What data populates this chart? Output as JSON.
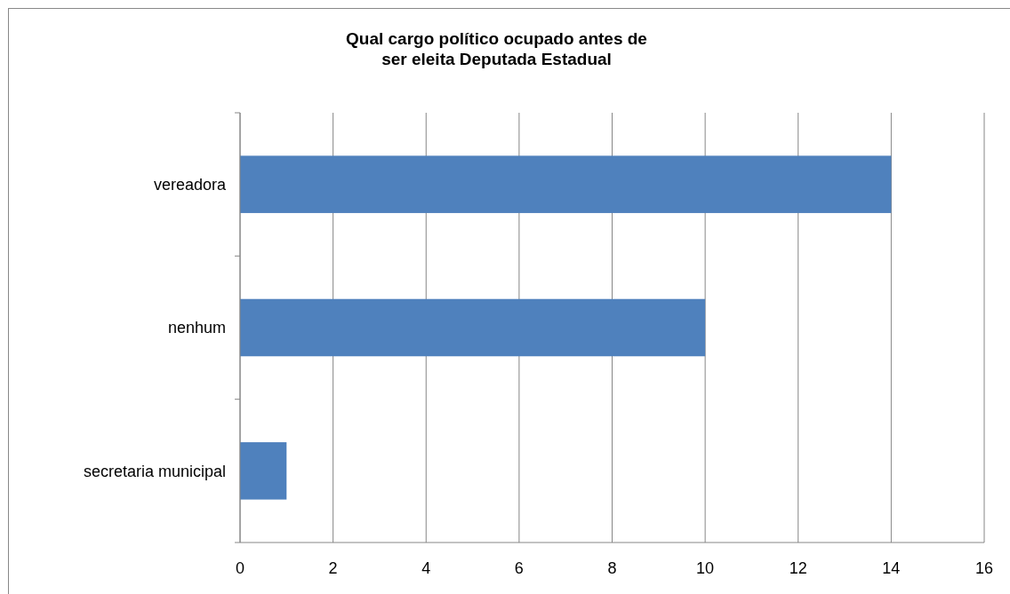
{
  "chart_data": {
    "type": "bar",
    "orientation": "horizontal",
    "title": "Qual cargo político ocupado antes de\nser eleita Deputada Estadual",
    "categories": [
      "vereadora",
      "nenhum",
      "secretaria municipal"
    ],
    "values": [
      14,
      10,
      1
    ],
    "color": "#4f81bd",
    "xlim": [
      0,
      16
    ],
    "xticks": [
      0,
      2,
      4,
      6,
      8,
      10,
      12,
      14,
      16
    ],
    "grid": "x"
  }
}
